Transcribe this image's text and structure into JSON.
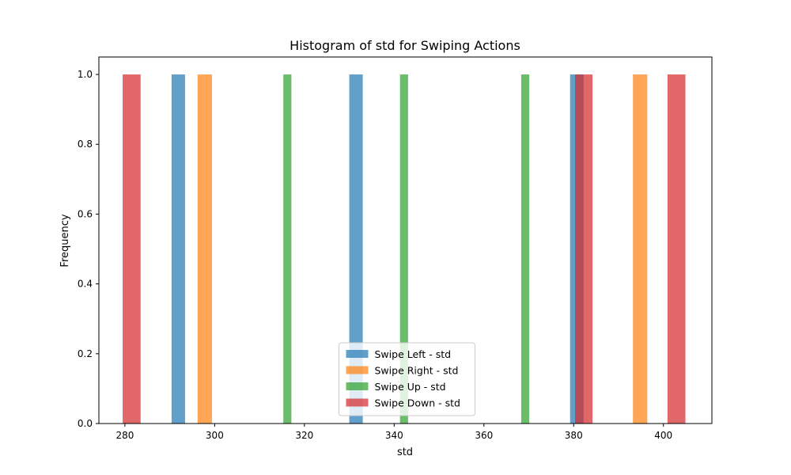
{
  "chart_data": {
    "type": "bar",
    "title": "Histogram of std for Swiping Actions",
    "xlabel": "std",
    "ylabel": "Frequency",
    "xlim": [
      274.2,
      410.8
    ],
    "ylim": [
      0,
      1.05
    ],
    "x_ticks": [
      280,
      300,
      320,
      340,
      360,
      380,
      400
    ],
    "y_ticks": [
      0.0,
      0.2,
      0.4,
      0.6,
      0.8,
      1.0
    ],
    "x_tick_labels": [
      "280",
      "300",
      "320",
      "340",
      "360",
      "380",
      "400"
    ],
    "y_tick_labels": [
      "0.0",
      "0.2",
      "0.4",
      "0.6",
      "0.8",
      "1.0"
    ],
    "grid": false,
    "legend_position": "lower center",
    "series": [
      {
        "name": "Swipe Left - std",
        "color": "#1f77b4",
        "bins": [
          {
            "x0": 290.4,
            "x1": 293.4,
            "count": 1
          },
          {
            "x0": 330.0,
            "x1": 333.0,
            "count": 1
          },
          {
            "x0": 379.2,
            "x1": 382.2,
            "count": 1
          }
        ]
      },
      {
        "name": "Swipe Right - std",
        "color": "#ff7f0e",
        "bins": [
          {
            "x0": 296.2,
            "x1": 299.4,
            "count": 1
          },
          {
            "x0": 393.2,
            "x1": 396.4,
            "count": 1
          }
        ]
      },
      {
        "name": "Swipe Up - std",
        "color": "#2ca02c",
        "bins": [
          {
            "x0": 315.3,
            "x1": 317.1,
            "count": 1
          },
          {
            "x0": 341.3,
            "x1": 343.1,
            "count": 1
          },
          {
            "x0": 368.3,
            "x1": 370.1,
            "count": 1
          }
        ]
      },
      {
        "name": "Swipe Down - std",
        "color": "#d62728",
        "bins": [
          {
            "x0": 279.5,
            "x1": 283.5,
            "count": 1
          },
          {
            "x0": 380.3,
            "x1": 384.2,
            "count": 1
          },
          {
            "x0": 400.9,
            "x1": 404.9,
            "count": 1
          }
        ]
      }
    ]
  }
}
